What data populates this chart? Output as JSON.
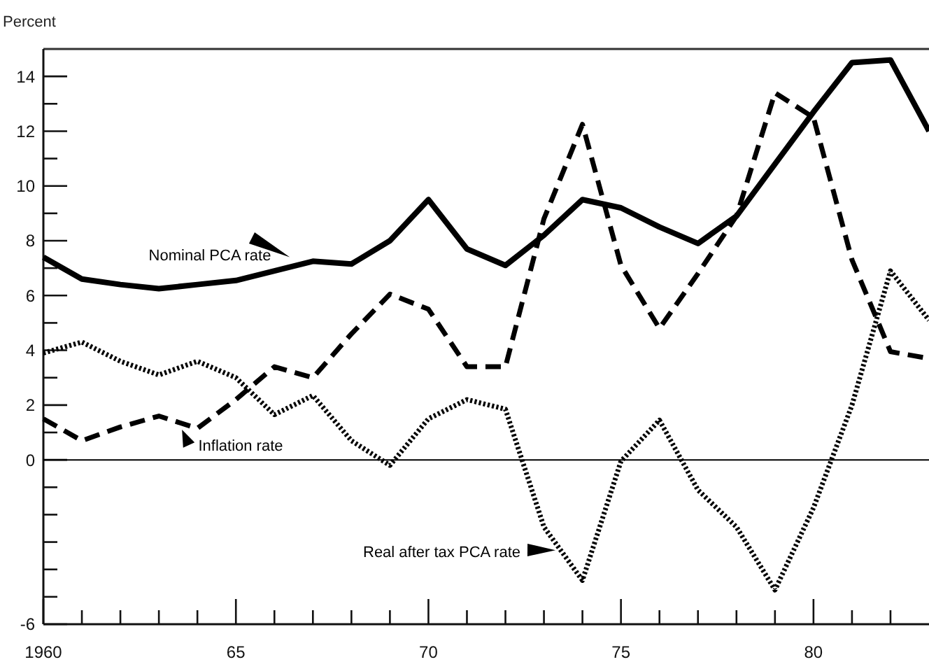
{
  "chart_data": {
    "type": "line",
    "ylabel": "Percent",
    "x": [
      1960,
      1961,
      1962,
      1963,
      1964,
      1965,
      1966,
      1967,
      1968,
      1969,
      1970,
      1971,
      1972,
      1973,
      1974,
      1975,
      1976,
      1977,
      1978,
      1979,
      1980,
      1981,
      1982,
      1983
    ],
    "series": [
      {
        "name": "Nominal PCA rate",
        "color": "#000000",
        "line_style": "solid",
        "values": [
          7.4,
          6.6,
          6.4,
          6.25,
          6.4,
          6.55,
          6.9,
          7.25,
          7.15,
          8.0,
          9.5,
          7.7,
          7.1,
          8.2,
          9.5,
          9.2,
          8.5,
          7.9,
          8.9,
          10.8,
          12.7,
          14.5,
          14.6,
          12.0
        ]
      },
      {
        "name": "Inflation rate",
        "color": "#000000",
        "line_style": "dashed",
        "values": [
          1.5,
          0.7,
          1.2,
          1.6,
          1.15,
          2.2,
          3.4,
          3.0,
          4.6,
          6.05,
          5.5,
          3.4,
          3.4,
          8.8,
          12.25,
          7.1,
          4.8,
          6.8,
          8.9,
          13.4,
          12.5,
          7.3,
          3.95,
          3.7
        ]
      },
      {
        "name": "Real after tax PCA rate",
        "color": "#000000",
        "line_style": "dotted",
        "values": [
          3.9,
          4.3,
          3.6,
          3.1,
          3.6,
          3.0,
          1.65,
          2.35,
          0.7,
          -0.2,
          1.5,
          2.2,
          1.85,
          -2.45,
          -4.4,
          -0.05,
          1.45,
          -1.1,
          -2.45,
          -4.75,
          -1.75,
          2.0,
          6.9,
          5.1
        ]
      }
    ],
    "xlim": [
      1960,
      1983
    ],
    "xticks": [
      1960,
      {
        "value": 1961,
        "label": null
      },
      {
        "value": 1962,
        "label": null
      },
      {
        "value": 1963,
        "label": null
      },
      {
        "value": 1964,
        "label": null
      },
      {
        "value": 1965,
        "label": "65"
      },
      {
        "value": 1966,
        "label": null
      },
      {
        "value": 1967,
        "label": null
      },
      {
        "value": 1968,
        "label": null
      },
      {
        "value": 1969,
        "label": null
      },
      {
        "value": 1970,
        "label": "70"
      },
      {
        "value": 1971,
        "label": null
      },
      {
        "value": 1972,
        "label": null
      },
      {
        "value": 1973,
        "label": null
      },
      {
        "value": 1974,
        "label": null
      },
      {
        "value": 1975,
        "label": "75"
      },
      {
        "value": 1976,
        "label": null
      },
      {
        "value": 1977,
        "label": null
      },
      {
        "value": 1978,
        "label": null
      },
      {
        "value": 1979,
        "label": null
      },
      {
        "value": 1980,
        "label": "80"
      },
      {
        "value": 1981,
        "label": null
      },
      {
        "value": 1982,
        "label": null
      }
    ],
    "ylim": [
      -6,
      15
    ],
    "yticks": [
      -6,
      {
        "value": -5,
        "label": null
      },
      {
        "value": -4,
        "label": null
      },
      {
        "value": -3,
        "label": null
      },
      {
        "value": -2,
        "label": null
      },
      {
        "value": -1,
        "label": null
      },
      0,
      {
        "value": 1,
        "label": null
      },
      2,
      {
        "value": 3,
        "label": null
      },
      4,
      {
        "value": 5,
        "label": null
      },
      6,
      {
        "value": 7,
        "label": null
      },
      8,
      {
        "value": 9,
        "label": null
      },
      10,
      {
        "value": 11,
        "label": null
      },
      12,
      {
        "value": 13,
        "label": null
      },
      14
    ],
    "ref_lines": [
      {
        "axis": "y",
        "value": 0,
        "color": "#000000"
      }
    ],
    "grid": false,
    "marker": "none"
  }
}
